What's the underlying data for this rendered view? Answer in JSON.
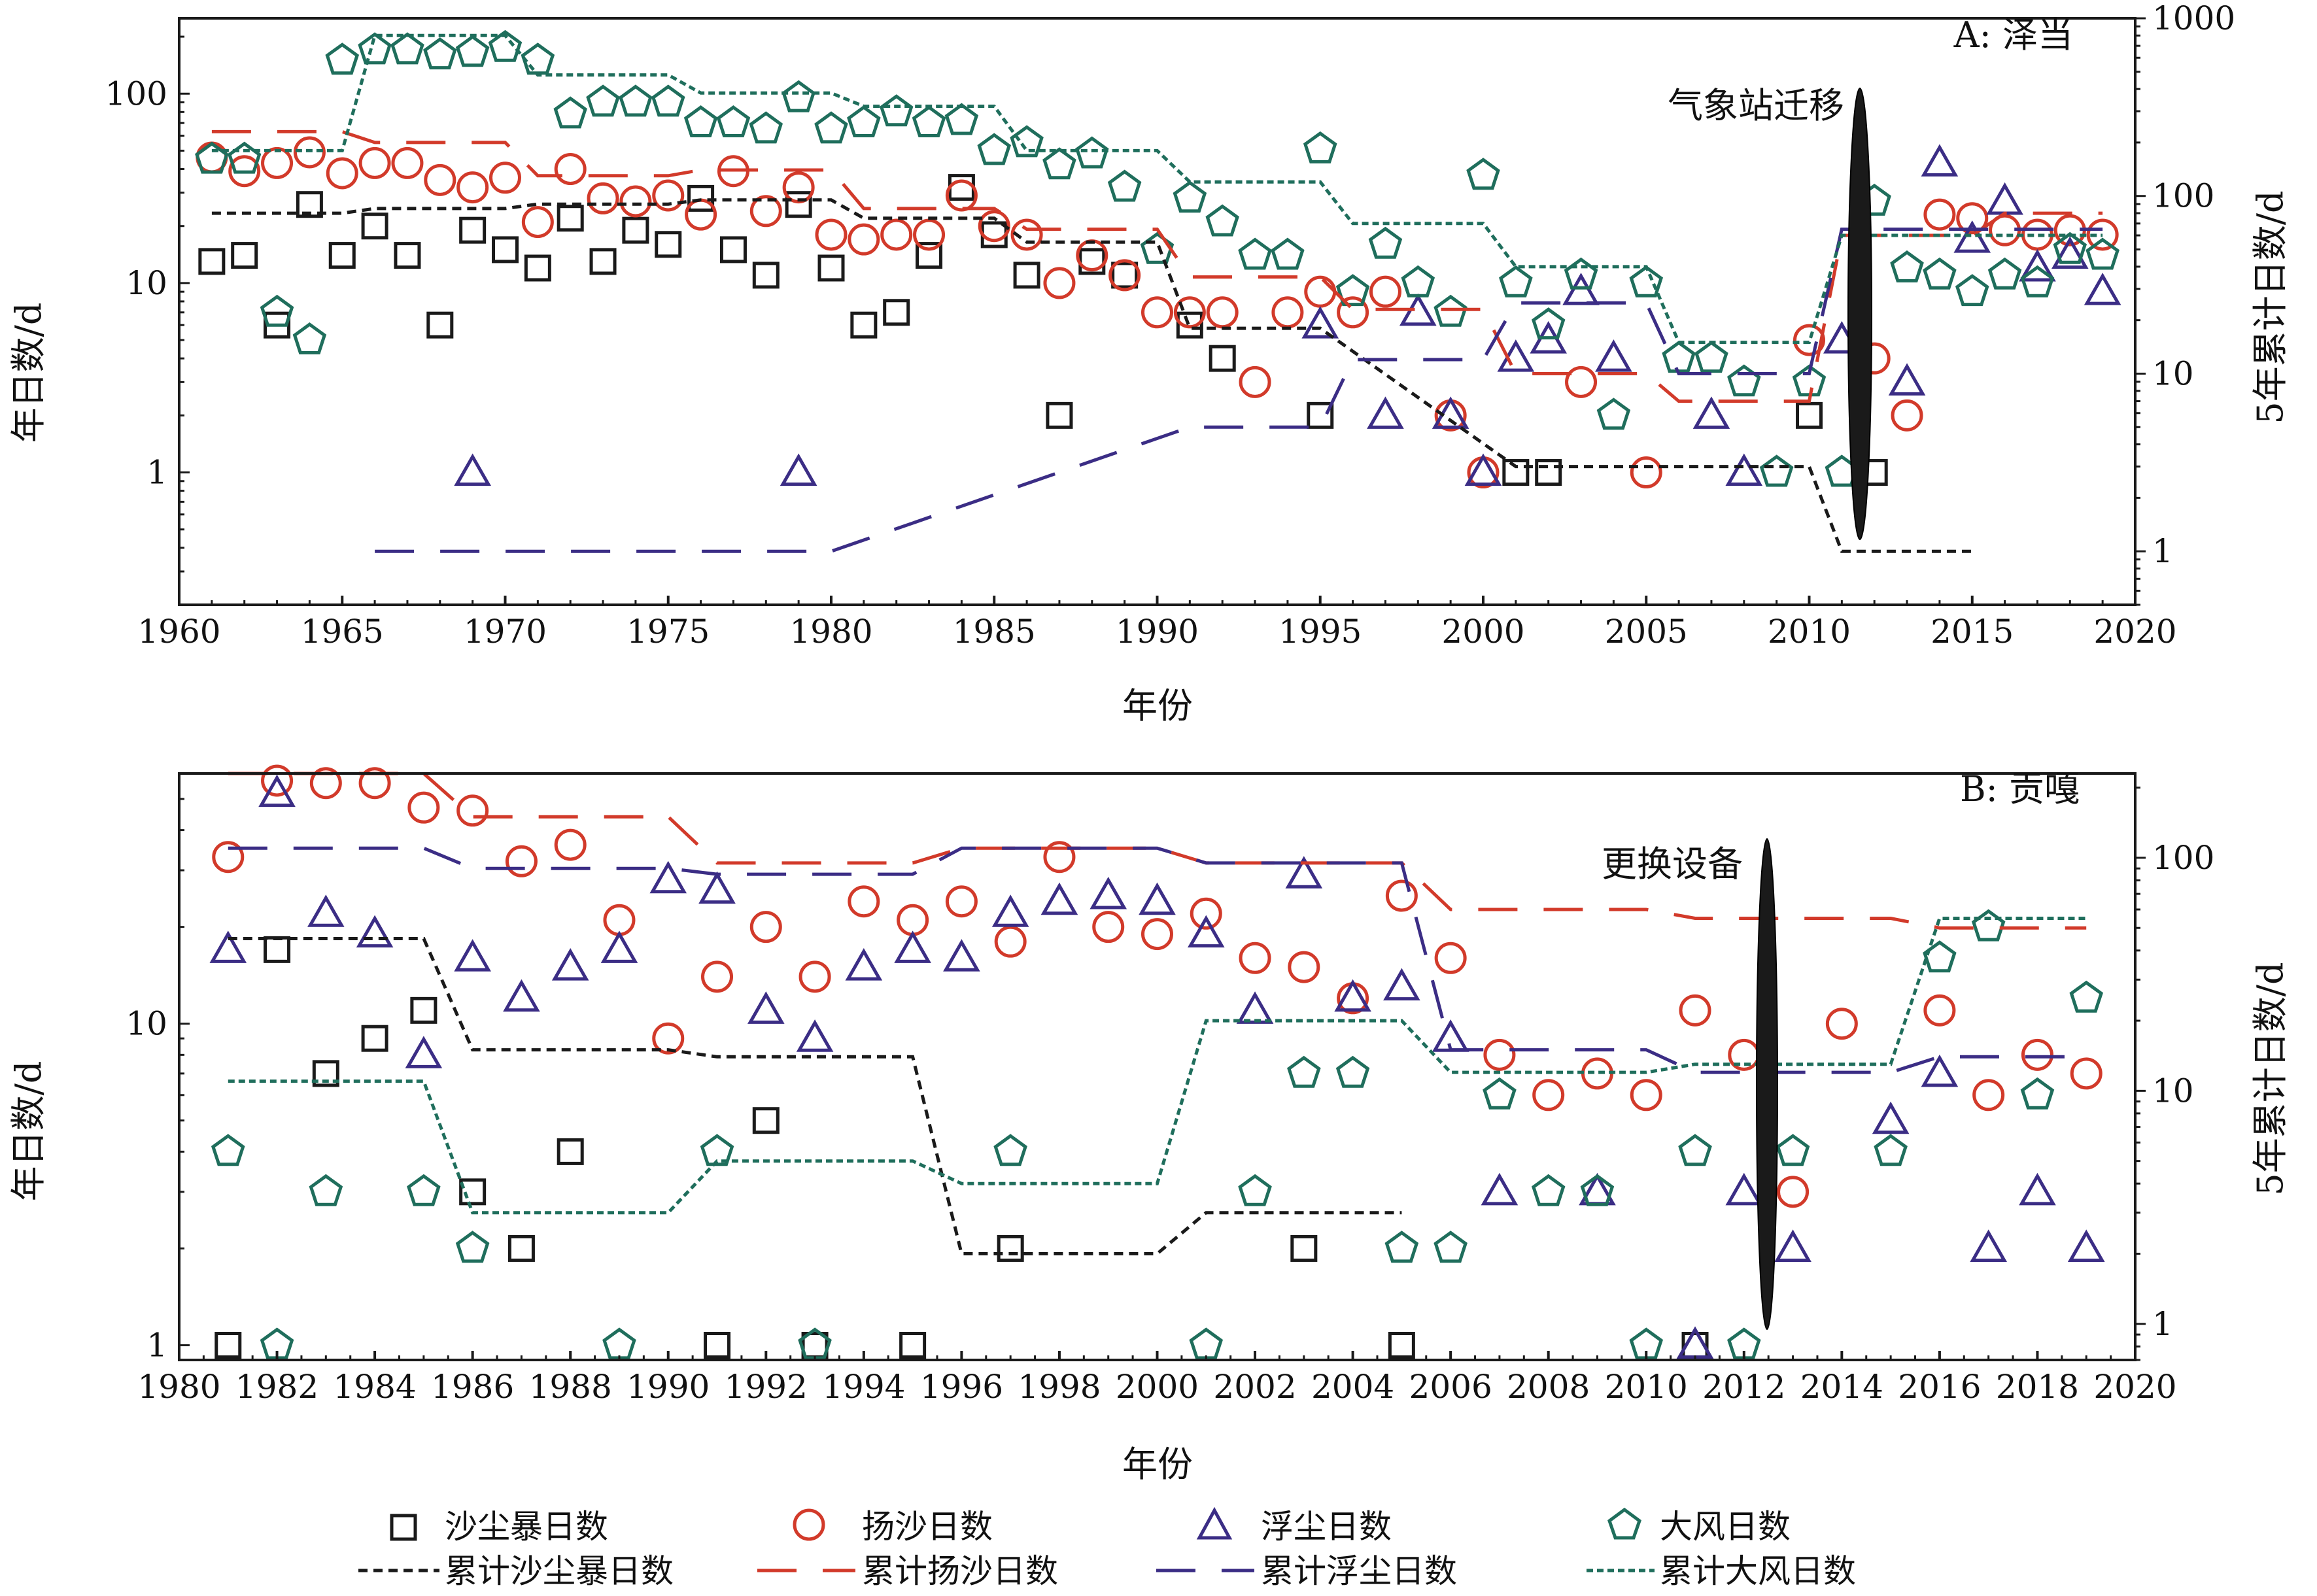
{
  "legend": {
    "items": [
      {
        "label": "沙尘暴日数",
        "marker": "square",
        "color": "#1a1a1a"
      },
      {
        "label": "扬沙日数",
        "marker": "circle",
        "color": "#d23a2a"
      },
      {
        "label": "浮尘日数",
        "marker": "triangle",
        "color": "#3b2d85"
      },
      {
        "label": "大风日数",
        "marker": "pentagon",
        "color": "#1f6e5c"
      },
      {
        "label": "累计沙尘暴日数",
        "line": "short-dash",
        "color": "#1a1a1a"
      },
      {
        "label": "累计扬沙日数",
        "line": "long-dash",
        "color": "#d23a2a"
      },
      {
        "label": "累计浮尘日数",
        "line": "long-dash",
        "color": "#3b2d85"
      },
      {
        "label": "累计大风日数",
        "line": "dot-dash",
        "color": "#1f6e5c"
      }
    ]
  },
  "chart_data": [
    {
      "type": "scatter",
      "title": "A: 泽当",
      "xlabel": "年份",
      "ylabel": "年日数/d",
      "y2label": "5年累计日数/d",
      "yscale": "log",
      "y2scale": "log",
      "xlim": [
        1960,
        2020
      ],
      "ylim": [
        0.2,
        250
      ],
      "y2lim": [
        0.5,
        1000
      ],
      "xticks": [
        "1960",
        "1965",
        "1970",
        "1975",
        "1980",
        "1985",
        "1990",
        "1995",
        "2000",
        "2005",
        "2010",
        "2015",
        "2020"
      ],
      "yticks": [
        "1",
        "10",
        "100"
      ],
      "y2ticks": [
        "1",
        "10",
        "100",
        "1000"
      ],
      "event": {
        "label": "气象站迁移",
        "x": 2011.6
      },
      "series": [
        {
          "name": "沙尘暴日数",
          "marker": "square",
          "color": "#1a1a1a",
          "x": [
            1961,
            1962,
            1963,
            1964,
            1965,
            1966,
            1967,
            1968,
            1969,
            1970,
            1971,
            1972,
            1973,
            1974,
            1975,
            1976,
            1977,
            1978,
            1979,
            1980,
            1981,
            1982,
            1983,
            1984,
            1985,
            1986,
            1987,
            1988,
            1989,
            1991,
            1992,
            1995,
            2001,
            2002,
            2010,
            2012
          ],
          "y": [
            13,
            14,
            6,
            26,
            14,
            20,
            14,
            6,
            19,
            15,
            12,
            22,
            13,
            19,
            16,
            28,
            15,
            11,
            26,
            12,
            6,
            7,
            14,
            32,
            18,
            11,
            2,
            13,
            11,
            6,
            4,
            2,
            1,
            1,
            2,
            1
          ]
        },
        {
          "name": "扬沙日数",
          "marker": "circle",
          "color": "#d23a2a",
          "x": [
            1961,
            1962,
            1963,
            1964,
            1965,
            1966,
            1967,
            1968,
            1969,
            1970,
            1971,
            1972,
            1973,
            1974,
            1975,
            1976,
            1977,
            1978,
            1979,
            1980,
            1981,
            1982,
            1983,
            1984,
            1985,
            1986,
            1987,
            1988,
            1989,
            1990,
            1991,
            1992,
            1993,
            1994,
            1995,
            1996,
            1997,
            1999,
            2000,
            2003,
            2005,
            2010,
            2012,
            2013,
            2014,
            2015,
            2016,
            2017,
            2018,
            2019
          ],
          "y": [
            46,
            39,
            43,
            49,
            38,
            43,
            43,
            35,
            32,
            36,
            21,
            40,
            28,
            27,
            29,
            23,
            39,
            24,
            32,
            18,
            17,
            18,
            18,
            29,
            20,
            18,
            10,
            14,
            11,
            7,
            7,
            7,
            3,
            7,
            9,
            7,
            9,
            2,
            1,
            3,
            1,
            5,
            4,
            2,
            23,
            22,
            19,
            18,
            19,
            18
          ]
        },
        {
          "name": "浮尘日数",
          "marker": "triangle",
          "color": "#3b2d85",
          "x": [
            1969,
            1979,
            1995,
            1997,
            1998,
            1999,
            2000,
            2001,
            2002,
            2003,
            2004,
            2007,
            2008,
            2011,
            2013,
            2014,
            2015,
            2016,
            2017,
            2018,
            2019
          ],
          "y": [
            1,
            1,
            6,
            2,
            7,
            2,
            1,
            4,
            5,
            9,
            4,
            2,
            1,
            5,
            3,
            43,
            17,
            27,
            12,
            14,
            9
          ]
        },
        {
          "name": "大风日数",
          "marker": "pentagon",
          "color": "#1f6e5c",
          "x": [
            1961,
            1962,
            1963,
            1964,
            1965,
            1966,
            1967,
            1968,
            1969,
            1970,
            1971,
            1972,
            1973,
            1974,
            1975,
            1976,
            1977,
            1978,
            1979,
            1980,
            1981,
            1982,
            1983,
            1984,
            1985,
            1986,
            1987,
            1988,
            1989,
            1990,
            1991,
            1992,
            1993,
            1994,
            1995,
            1996,
            1997,
            1998,
            1999,
            2000,
            2001,
            2002,
            2003,
            2004,
            2005,
            2006,
            2007,
            2008,
            2009,
            2010,
            2011,
            2012,
            2013,
            2014,
            2015,
            2016,
            2017,
            2018,
            2019
          ],
          "y": [
            45,
            45,
            7,
            5,
            150,
            170,
            170,
            160,
            165,
            175,
            150,
            78,
            90,
            90,
            90,
            70,
            70,
            65,
            95,
            65,
            70,
            80,
            70,
            72,
            50,
            55,
            42,
            48,
            32,
            15,
            28,
            21,
            14,
            14,
            51,
            9,
            16,
            10,
            7,
            37,
            10,
            6,
            11,
            2,
            10,
            4,
            4,
            3,
            1,
            3,
            1,
            27,
            12,
            11,
            9,
            11,
            10,
            15,
            14
          ]
        },
        {
          "name": "累计沙尘暴日数",
          "line": "short-dash",
          "color": "#1a1a1a",
          "axis": "right",
          "x": [
            1961,
            1965,
            1966,
            1970,
            1971,
            1975,
            1976,
            1980,
            1981,
            1985,
            1986,
            1990,
            1991,
            1995,
            2001,
            2010,
            2011,
            2015
          ],
          "y": [
            80,
            80,
            85,
            85,
            90,
            90,
            95,
            95,
            75,
            75,
            55,
            55,
            18,
            18,
            3,
            3,
            1,
            1
          ]
        },
        {
          "name": "累计扬沙日数",
          "line": "long-dash",
          "color": "#d23a2a",
          "axis": "right",
          "x": [
            1961,
            1965,
            1966,
            1970,
            1971,
            1975,
            1976,
            1980,
            1981,
            1985,
            1986,
            1990,
            1991,
            1995,
            1996,
            2000,
            2001,
            2005,
            2006,
            2010,
            2011,
            2015,
            2016,
            2019
          ],
          "y": [
            230,
            230,
            200,
            200,
            130,
            130,
            140,
            140,
            85,
            85,
            65,
            65,
            35,
            35,
            23,
            23,
            10,
            10,
            7,
            7,
            60,
            60,
            80,
            80
          ]
        },
        {
          "name": "累计浮尘日数",
          "line": "long-dash",
          "color": "#3b2d85",
          "axis": "right",
          "x": [
            1966,
            1970,
            1976,
            1980,
            1991,
            1995,
            1996,
            2000,
            2001,
            2005,
            2006,
            2010,
            2011,
            2015,
            2016,
            2019
          ],
          "y": [
            1,
            1,
            1,
            1,
            5,
            5,
            12,
            12,
            25,
            25,
            10,
            10,
            65,
            65,
            65,
            65
          ]
        },
        {
          "name": "累计大风日数",
          "line": "dot-dash",
          "color": "#1f6e5c",
          "axis": "right",
          "x": [
            1961,
            1965,
            1966,
            1970,
            1971,
            1975,
            1976,
            1980,
            1981,
            1985,
            1986,
            1990,
            1991,
            1995,
            1996,
            2000,
            2001,
            2005,
            2006,
            2010,
            2011,
            2015,
            2016,
            2019
          ],
          "y": [
            180,
            180,
            800,
            800,
            480,
            480,
            380,
            380,
            320,
            320,
            180,
            180,
            120,
            120,
            70,
            70,
            40,
            40,
            15,
            15,
            60,
            60,
            60,
            60
          ]
        }
      ]
    },
    {
      "type": "scatter",
      "title": "B: 贡嘎",
      "xlabel": "年份",
      "ylabel": "年日数/d",
      "y2label": "5年累计日数/d",
      "yscale": "log",
      "y2scale": "log",
      "xlim": [
        1980,
        2020
      ],
      "ylim": [
        0.9,
        60
      ],
      "y2lim": [
        0.7,
        230
      ],
      "xticks": [
        "1980",
        "1982",
        "1984",
        "1986",
        "1988",
        "1990",
        "1992",
        "1994",
        "1996",
        "1998",
        "2000",
        "2002",
        "2004",
        "2006",
        "2008",
        "2010",
        "2012",
        "2014",
        "2016",
        "2018",
        "2020"
      ],
      "yticks": [
        "1",
        "10"
      ],
      "y2ticks": [
        "1",
        "10",
        "100"
      ],
      "event": {
        "label": "更换设备",
        "x": 2012.5
      },
      "series": [
        {
          "name": "沙尘暴日数",
          "marker": "square",
          "color": "#1a1a1a",
          "x": [
            1981,
            1982,
            1983,
            1984,
            1985,
            1986,
            1987,
            1988,
            1991,
            1992,
            1993,
            1995,
            1997,
            2003,
            2005,
            2011
          ],
          "y": [
            1,
            17,
            7,
            9,
            11,
            3,
            2,
            4,
            1,
            5,
            1,
            1,
            2,
            2,
            1,
            1
          ]
        },
        {
          "name": "扬沙日数",
          "marker": "circle",
          "color": "#d23a2a",
          "x": [
            1981,
            1982,
            1983,
            1984,
            1985,
            1986,
            1987,
            1988,
            1989,
            1990,
            1991,
            1992,
            1993,
            1994,
            1995,
            1996,
            1997,
            1998,
            1999,
            2000,
            2001,
            2002,
            2003,
            2004,
            2005,
            2006,
            2007,
            2008,
            2009,
            2010,
            2011,
            2012,
            2013,
            2014,
            2016,
            2017,
            2018,
            2019
          ],
          "y": [
            33,
            57,
            56,
            56,
            47,
            46,
            32,
            36,
            21,
            9,
            14,
            20,
            14,
            24,
            21,
            24,
            18,
            33,
            20,
            19,
            22,
            16,
            15,
            12,
            25,
            16,
            8,
            6,
            7,
            6,
            11,
            8,
            3,
            10,
            11,
            6,
            8,
            7
          ]
        },
        {
          "name": "浮尘日数",
          "marker": "triangle",
          "color": "#3b2d85",
          "x": [
            1981,
            1982,
            1983,
            1984,
            1985,
            1986,
            1987,
            1988,
            1989,
            1990,
            1991,
            1992,
            1993,
            1994,
            1995,
            1996,
            1997,
            1998,
            1999,
            2000,
            2001,
            2002,
            2003,
            2004,
            2005,
            2006,
            2007,
            2009,
            2011,
            2012,
            2013,
            2015,
            2016,
            2017,
            2018,
            2019
          ],
          "y": [
            17,
            52,
            22,
            19,
            8,
            16,
            12,
            15,
            17,
            28,
            26,
            11,
            9,
            15,
            17,
            16,
            22,
            24,
            25,
            24,
            19,
            11,
            29,
            12,
            13,
            9,
            3,
            3,
            1,
            3,
            2,
            5,
            7,
            2,
            3,
            2
          ]
        },
        {
          "name": "大风日数",
          "marker": "pentagon",
          "color": "#1f6e5c",
          "x": [
            1981,
            1982,
            1983,
            1985,
            1986,
            1989,
            1991,
            1993,
            1997,
            2001,
            2002,
            2003,
            2004,
            2005,
            2006,
            2007,
            2008,
            2009,
            2010,
            2011,
            2012,
            2013,
            2015,
            2016,
            2017,
            2018,
            2019
          ],
          "y": [
            4,
            1,
            3,
            3,
            2,
            1,
            4,
            1,
            4,
            1,
            3,
            7,
            7,
            2,
            2,
            6,
            3,
            3,
            1,
            4,
            1,
            4,
            4,
            16,
            20,
            6,
            12
          ]
        },
        {
          "name": "累计沙尘暴日数",
          "line": "short-dash",
          "color": "#1a1a1a",
          "axis": "right",
          "x": [
            1981,
            1985,
            1986,
            1990,
            1991,
            1995,
            1996,
            2000,
            2001,
            2005
          ],
          "y": [
            45,
            45,
            15,
            15,
            14,
            14,
            2,
            2,
            3,
            3
          ]
        },
        {
          "name": "累计扬沙日数",
          "line": "long-dash",
          "color": "#d23a2a",
          "axis": "right",
          "x": [
            1981,
            1985,
            1986,
            1990,
            1991,
            1995,
            1996,
            2000,
            2001,
            2005,
            2006,
            2010,
            2011,
            2015,
            2016,
            2019
          ],
          "y": [
            230,
            230,
            150,
            150,
            95,
            95,
            110,
            110,
            95,
            95,
            60,
            60,
            55,
            55,
            50,
            50
          ]
        },
        {
          "name": "累计浮尘日数",
          "line": "long-dash",
          "color": "#3b2d85",
          "axis": "right",
          "x": [
            1981,
            1985,
            1986,
            1990,
            1991,
            1995,
            1996,
            2000,
            2001,
            2005,
            2006,
            2010,
            2011,
            2015,
            2016,
            2019
          ],
          "y": [
            110,
            110,
            90,
            90,
            85,
            85,
            110,
            110,
            95,
            95,
            15,
            15,
            12,
            12,
            14,
            14
          ]
        },
        {
          "name": "累计大风日数",
          "line": "dot-dash",
          "color": "#1f6e5c",
          "axis": "right",
          "x": [
            1981,
            1985,
            1986,
            1990,
            1991,
            1995,
            1996,
            2000,
            2001,
            2005,
            2006,
            2010,
            2011,
            2015,
            2016,
            2019
          ],
          "y": [
            11,
            11,
            3,
            3,
            5,
            5,
            4,
            4,
            20,
            20,
            12,
            12,
            13,
            13,
            55,
            55
          ]
        }
      ]
    }
  ]
}
